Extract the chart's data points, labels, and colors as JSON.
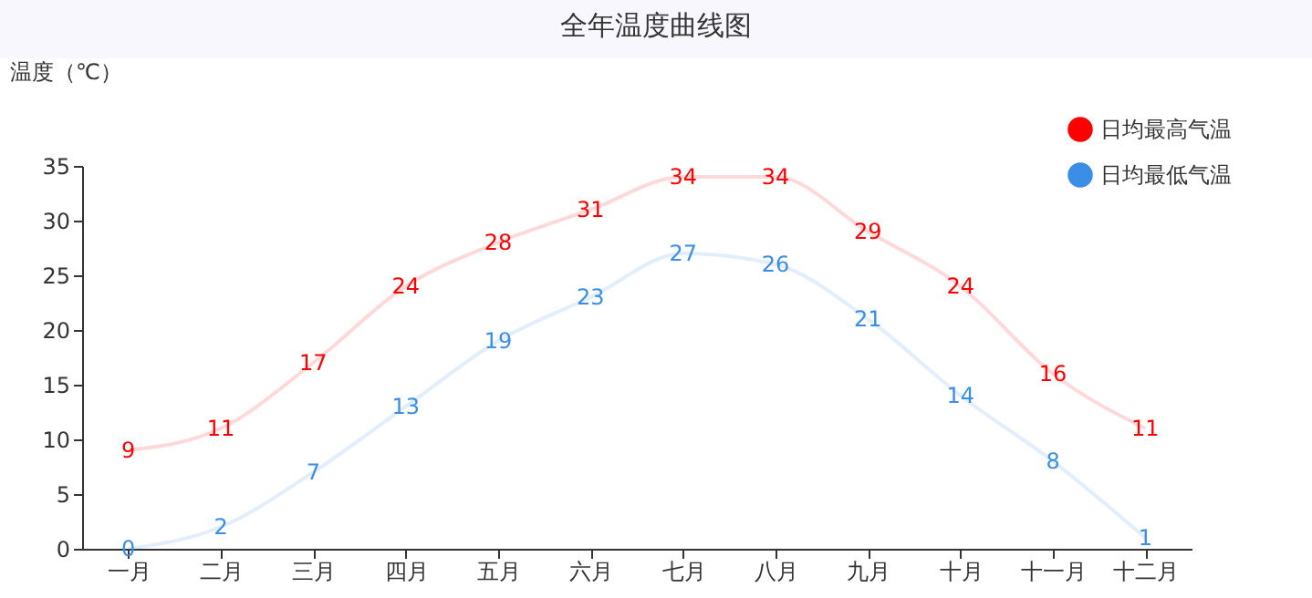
{
  "chart_data": {
    "type": "line",
    "title": "全年温度曲线图",
    "ylabel": "温度（℃）",
    "categories": [
      "一月",
      "二月",
      "三月",
      "四月",
      "五月",
      "六月",
      "七月",
      "八月",
      "九月",
      "十月",
      "十一月",
      "十二月"
    ],
    "series": [
      {
        "name": "日均最高气温",
        "color": "#ff0000",
        "values": [
          9,
          11,
          17,
          24,
          28,
          31,
          34,
          34,
          29,
          24,
          16,
          11
        ]
      },
      {
        "name": "日均最低气温",
        "color": "#3a8ee6",
        "values": [
          0,
          2,
          7,
          13,
          19,
          23,
          27,
          26,
          21,
          14,
          8,
          1
        ]
      }
    ],
    "ylim": [
      0,
      35
    ],
    "yticks": [
      0,
      5,
      10,
      15,
      20,
      25,
      30,
      35
    ],
    "data_labels": true,
    "legend": "top right",
    "line_style": "solid"
  }
}
